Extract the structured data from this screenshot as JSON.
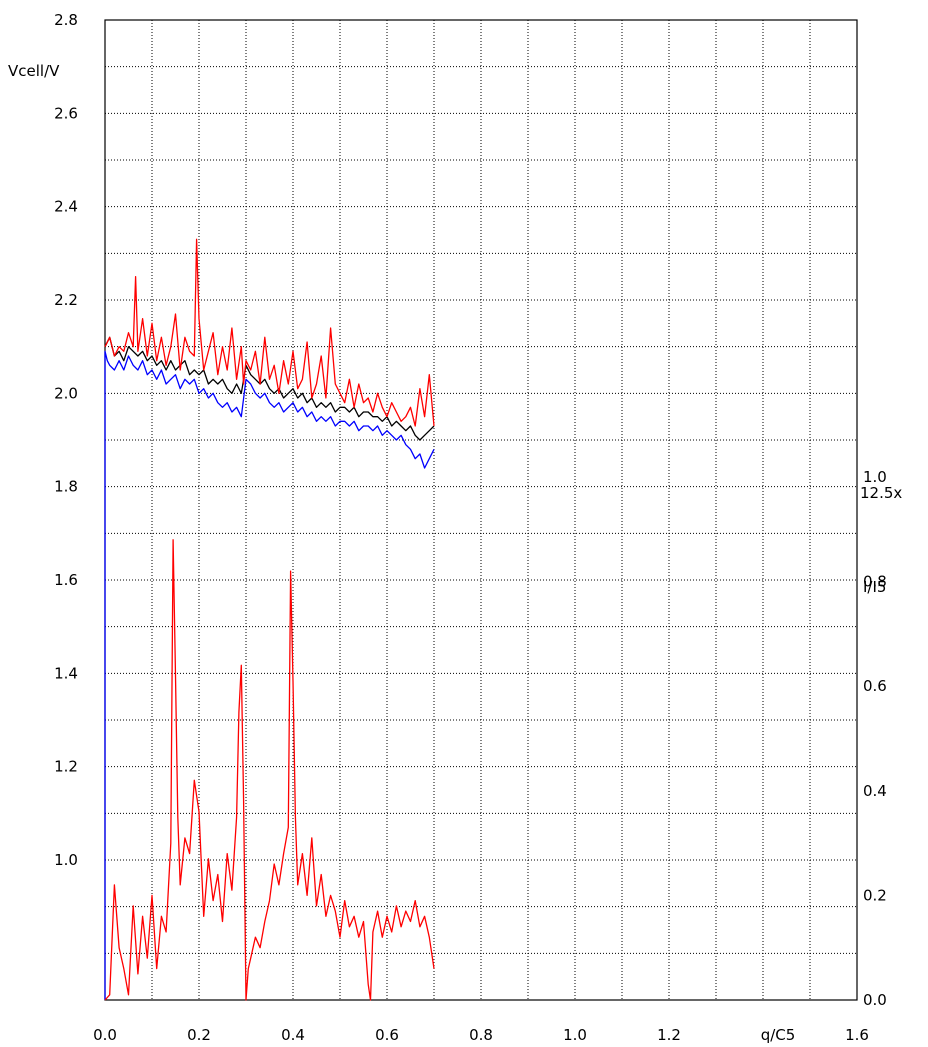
{
  "chart_data": {
    "type": "line",
    "ylabel": "Vcell/V",
    "xlabel": "q/C5",
    "y2label": "I/I5",
    "y2_scale_note": "12.5x",
    "xlim": [
      0,
      1.6
    ],
    "ylim": [
      0.7,
      2.8
    ],
    "y2lim": [
      0,
      1.0
    ],
    "grid": true,
    "x_ticks": [
      "0.0",
      "0.2",
      "0.4",
      "0.6",
      "0.8",
      "1.0",
      "1.2",
      "1.6"
    ],
    "x_tick_values": [
      0.0,
      0.2,
      0.4,
      0.6,
      0.8,
      1.0,
      1.2,
      1.6
    ],
    "y_ticks": [
      "1.0",
      "1.2",
      "1.4",
      "1.6",
      "1.8",
      "2.0",
      "2.2",
      "2.4",
      "2.6",
      "2.8"
    ],
    "y_tick_values": [
      1.0,
      1.2,
      1.4,
      1.6,
      1.8,
      2.0,
      2.2,
      2.4,
      2.6,
      2.8
    ],
    "y2_ticks": [
      "0.0",
      "0.2",
      "0.4",
      "0.6",
      "0.8",
      "1.0"
    ],
    "y2_tick_values": [
      0.0,
      0.2,
      0.4,
      0.6,
      0.8,
      1.0
    ],
    "series": [
      {
        "color": "#0000ff",
        "axis": "left",
        "x": [
          0.0,
          0.0,
          0.005,
          0.01,
          0.02,
          0.03,
          0.04,
          0.05,
          0.06,
          0.07,
          0.08,
          0.09,
          0.1,
          0.11,
          0.12,
          0.13,
          0.14,
          0.15,
          0.16,
          0.17,
          0.18,
          0.19,
          0.2,
          0.21,
          0.22,
          0.23,
          0.24,
          0.25,
          0.26,
          0.27,
          0.28,
          0.29,
          0.3,
          0.31,
          0.32,
          0.33,
          0.34,
          0.35,
          0.36,
          0.37,
          0.38,
          0.39,
          0.4,
          0.41,
          0.42,
          0.43,
          0.44,
          0.45,
          0.46,
          0.47,
          0.48,
          0.49,
          0.5,
          0.51,
          0.52,
          0.53,
          0.54,
          0.55,
          0.56,
          0.57,
          0.58,
          0.59,
          0.6,
          0.61,
          0.62,
          0.63,
          0.64,
          0.65,
          0.66,
          0.67,
          0.68,
          0.69,
          0.7
        ],
        "y": [
          0.7,
          2.09,
          2.07,
          2.06,
          2.05,
          2.07,
          2.05,
          2.08,
          2.06,
          2.05,
          2.07,
          2.04,
          2.05,
          2.03,
          2.05,
          2.02,
          2.03,
          2.04,
          2.01,
          2.03,
          2.02,
          2.03,
          2.0,
          2.01,
          1.99,
          2.0,
          1.98,
          1.97,
          1.98,
          1.96,
          1.97,
          1.95,
          2.03,
          2.02,
          2.0,
          1.99,
          2.0,
          1.98,
          1.97,
          1.98,
          1.96,
          1.97,
          1.98,
          1.96,
          1.97,
          1.95,
          1.96,
          1.94,
          1.95,
          1.94,
          1.95,
          1.93,
          1.94,
          1.94,
          1.93,
          1.94,
          1.92,
          1.93,
          1.93,
          1.92,
          1.93,
          1.91,
          1.92,
          1.91,
          1.9,
          1.91,
          1.89,
          1.88,
          1.86,
          1.87,
          1.84,
          1.86,
          1.88
        ]
      },
      {
        "color": "#000000",
        "axis": "left",
        "x": [
          0.0,
          0.01,
          0.02,
          0.03,
          0.04,
          0.05,
          0.06,
          0.07,
          0.08,
          0.09,
          0.1,
          0.11,
          0.12,
          0.13,
          0.14,
          0.15,
          0.16,
          0.17,
          0.18,
          0.19,
          0.2,
          0.21,
          0.22,
          0.23,
          0.24,
          0.25,
          0.26,
          0.27,
          0.28,
          0.29,
          0.3,
          0.31,
          0.32,
          0.33,
          0.34,
          0.35,
          0.36,
          0.37,
          0.38,
          0.39,
          0.4,
          0.41,
          0.42,
          0.43,
          0.44,
          0.45,
          0.46,
          0.47,
          0.48,
          0.49,
          0.5,
          0.51,
          0.52,
          0.53,
          0.54,
          0.55,
          0.56,
          0.57,
          0.58,
          0.59,
          0.6,
          0.61,
          0.62,
          0.63,
          0.64,
          0.65,
          0.66,
          0.67,
          0.68,
          0.69,
          0.7
        ],
        "y": [
          2.1,
          2.12,
          2.08,
          2.09,
          2.07,
          2.1,
          2.09,
          2.08,
          2.09,
          2.07,
          2.08,
          2.06,
          2.07,
          2.05,
          2.07,
          2.05,
          2.06,
          2.07,
          2.04,
          2.05,
          2.04,
          2.05,
          2.02,
          2.03,
          2.02,
          2.03,
          2.01,
          2.0,
          2.02,
          2.0,
          2.06,
          2.04,
          2.03,
          2.02,
          2.03,
          2.01,
          2.0,
          2.01,
          1.99,
          2.0,
          2.01,
          1.99,
          2.0,
          1.98,
          1.99,
          1.97,
          1.98,
          1.97,
          1.98,
          1.96,
          1.97,
          1.97,
          1.96,
          1.97,
          1.95,
          1.96,
          1.96,
          1.95,
          1.95,
          1.94,
          1.95,
          1.93,
          1.94,
          1.93,
          1.92,
          1.93,
          1.91,
          1.9,
          1.91,
          1.92,
          1.93
        ]
      },
      {
        "color": "#ff0000",
        "axis": "left",
        "x": [
          0.0,
          0.01,
          0.02,
          0.03,
          0.04,
          0.05,
          0.06,
          0.065,
          0.07,
          0.08,
          0.09,
          0.1,
          0.11,
          0.12,
          0.13,
          0.14,
          0.15,
          0.16,
          0.17,
          0.18,
          0.19,
          0.195,
          0.2,
          0.21,
          0.22,
          0.23,
          0.24,
          0.25,
          0.26,
          0.27,
          0.28,
          0.29,
          0.295,
          0.3,
          0.31,
          0.32,
          0.33,
          0.34,
          0.35,
          0.36,
          0.37,
          0.38,
          0.39,
          0.4,
          0.41,
          0.42,
          0.43,
          0.44,
          0.45,
          0.46,
          0.47,
          0.48,
          0.49,
          0.5,
          0.51,
          0.52,
          0.53,
          0.54,
          0.55,
          0.56,
          0.57,
          0.58,
          0.59,
          0.6,
          0.61,
          0.62,
          0.63,
          0.64,
          0.65,
          0.66,
          0.67,
          0.68,
          0.69,
          0.7
        ],
        "y": [
          2.1,
          2.12,
          2.08,
          2.1,
          2.09,
          2.13,
          2.1,
          2.25,
          2.09,
          2.16,
          2.08,
          2.15,
          2.07,
          2.12,
          2.06,
          2.1,
          2.17,
          2.05,
          2.12,
          2.09,
          2.08,
          2.33,
          2.16,
          2.05,
          2.09,
          2.13,
          2.04,
          2.1,
          2.05,
          2.14,
          2.03,
          2.1,
          2.02,
          2.07,
          2.05,
          2.09,
          2.02,
          2.12,
          2.03,
          2.06,
          2.0,
          2.07,
          2.02,
          2.09,
          2.01,
          2.03,
          2.11,
          1.99,
          2.02,
          2.08,
          1.99,
          2.14,
          2.02,
          2.0,
          1.98,
          2.03,
          1.97,
          2.02,
          1.98,
          1.99,
          1.96,
          2.0,
          1.97,
          1.95,
          1.98,
          1.96,
          1.94,
          1.95,
          1.97,
          1.93,
          2.01,
          1.95,
          2.04,
          1.93
        ]
      },
      {
        "color": "#ff0000",
        "axis": "right",
        "x": [
          0.0,
          0.01,
          0.02,
          0.03,
          0.04,
          0.05,
          0.06,
          0.07,
          0.08,
          0.09,
          0.1,
          0.11,
          0.12,
          0.13,
          0.14,
          0.145,
          0.15,
          0.155,
          0.16,
          0.17,
          0.18,
          0.19,
          0.2,
          0.21,
          0.22,
          0.23,
          0.24,
          0.25,
          0.26,
          0.27,
          0.28,
          0.285,
          0.29,
          0.295,
          0.3,
          0.305,
          0.31,
          0.32,
          0.33,
          0.34,
          0.35,
          0.36,
          0.37,
          0.38,
          0.39,
          0.395,
          0.4,
          0.405,
          0.41,
          0.42,
          0.43,
          0.44,
          0.45,
          0.46,
          0.47,
          0.48,
          0.49,
          0.5,
          0.51,
          0.52,
          0.53,
          0.54,
          0.55,
          0.56,
          0.565,
          0.57,
          0.58,
          0.59,
          0.6,
          0.61,
          0.62,
          0.63,
          0.64,
          0.65,
          0.66,
          0.67,
          0.68,
          0.69,
          0.7
        ],
        "y": [
          0.0,
          0.01,
          0.22,
          0.1,
          0.06,
          0.01,
          0.18,
          0.05,
          0.16,
          0.08,
          0.2,
          0.06,
          0.16,
          0.13,
          0.3,
          0.88,
          0.62,
          0.35,
          0.22,
          0.31,
          0.28,
          0.42,
          0.36,
          0.16,
          0.27,
          0.19,
          0.24,
          0.15,
          0.28,
          0.21,
          0.35,
          0.55,
          0.64,
          0.38,
          0.0,
          0.06,
          0.08,
          0.12,
          0.1,
          0.15,
          0.19,
          0.26,
          0.22,
          0.28,
          0.33,
          0.82,
          0.61,
          0.35,
          0.22,
          0.28,
          0.2,
          0.31,
          0.18,
          0.24,
          0.16,
          0.2,
          0.17,
          0.12,
          0.19,
          0.14,
          0.16,
          0.12,
          0.15,
          0.03,
          0.0,
          0.13,
          0.17,
          0.12,
          0.16,
          0.13,
          0.18,
          0.14,
          0.17,
          0.15,
          0.19,
          0.14,
          0.16,
          0.12,
          0.06
        ]
      }
    ]
  }
}
